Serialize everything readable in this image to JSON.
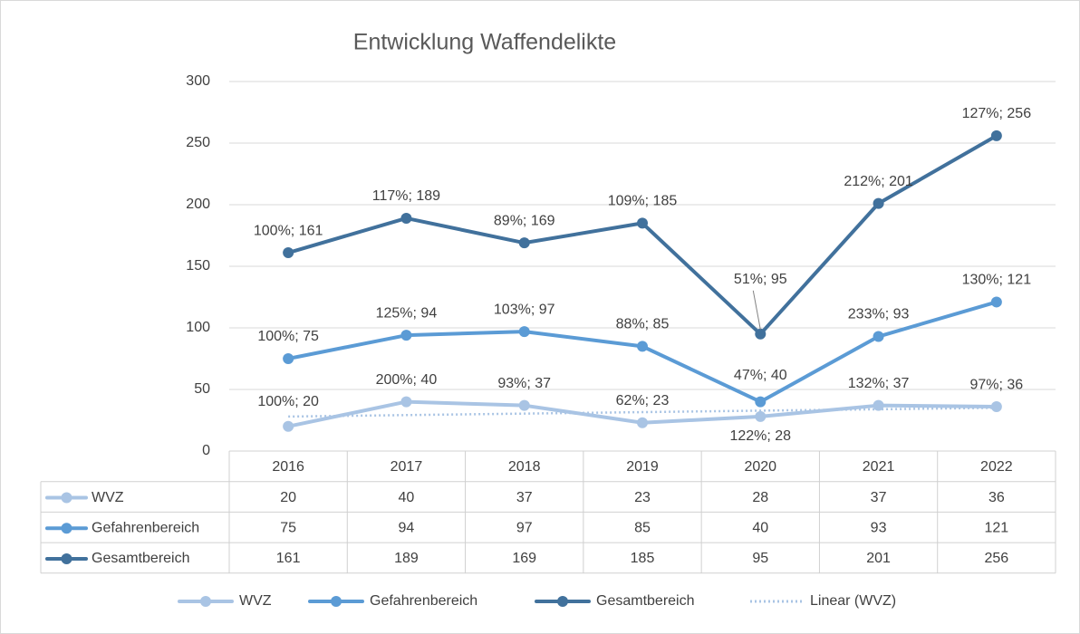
{
  "chart_data": {
    "type": "line",
    "title": "Entwicklung Waffendelikte",
    "categories": [
      "2016",
      "2017",
      "2018",
      "2019",
      "2020",
      "2021",
      "2022"
    ],
    "ylim": [
      0,
      300
    ],
    "yticks": [
      0,
      50,
      100,
      150,
      200,
      250,
      300
    ],
    "grid": true,
    "legend": "bottom",
    "series": [
      {
        "name": "WVZ",
        "color": "#a9c4e4",
        "values": [
          20,
          40,
          37,
          23,
          28,
          37,
          36
        ],
        "value_labels": [
          "100%; 20",
          "200%; 40",
          "93%; 37",
          "62%; 23",
          "122%; 28",
          "132%; 37",
          "97%; 36"
        ]
      },
      {
        "name": "Gefahrenbereich",
        "color": "#5b9bd5",
        "values": [
          75,
          94,
          97,
          85,
          40,
          93,
          121
        ],
        "value_labels": [
          "100%; 75",
          "125%; 94",
          "103%; 97",
          "88%; 85",
          "47%; 40",
          "233%; 93",
          "130%; 121"
        ]
      },
      {
        "name": "Gesamtbereich",
        "color": "#41719c",
        "values": [
          161,
          189,
          169,
          185,
          95,
          201,
          256
        ],
        "value_labels": [
          "100%; 161",
          "117%; 189",
          "89%; 169",
          "109%; 185",
          "51%; 95",
          "212%; 201",
          "127%; 256"
        ]
      }
    ],
    "trendline": {
      "name": "Linear (WVZ)",
      "color": "#a9c4e4",
      "values": [
        28.0,
        29.2,
        30.4,
        31.6,
        32.8,
        33.9,
        35.1
      ]
    }
  }
}
